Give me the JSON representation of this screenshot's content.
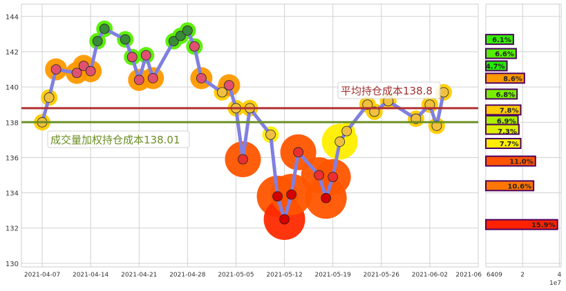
{
  "chart_data": [
    {
      "type": "line",
      "xlim": [
        "2021-04-04",
        "2021-06-09"
      ],
      "ylim": [
        129.8,
        144.7
      ],
      "yticks": [
        130,
        132,
        134,
        136,
        138,
        140,
        142,
        144
      ],
      "xticks": [
        "2021-04-07",
        "2021-04-14",
        "2021-04-21",
        "2021-04-28",
        "2021-05-05",
        "2021-05-12",
        "2021-05-19",
        "2021-05-26",
        "2021-06-02",
        "2021-06-09"
      ],
      "xtick_labels": [
        "2021-04-07",
        "2021-04-14",
        "2021-04-21",
        "2021-04-28",
        "2021-05-05",
        "2021-05-12",
        "2021-05-19",
        "2021-05-26",
        "2021-06-02",
        "2021-06"
      ],
      "grid": true,
      "line_color": "#8080e0",
      "series": [
        {
          "x": [
            "2021-04-07",
            "2021-04-08",
            "2021-04-09",
            "2021-04-12",
            "2021-04-13",
            "2021-04-14",
            "2021-04-15",
            "2021-04-16",
            "2021-04-19",
            "2021-04-20",
            "2021-04-21",
            "2021-04-22",
            "2021-04-23",
            "2021-04-26",
            "2021-04-27",
            "2021-04-28",
            "2021-04-29",
            "2021-04-30",
            "2021-05-03",
            "2021-05-04",
            "2021-05-05",
            "2021-05-06",
            "2021-05-07",
            "2021-05-10",
            "2021-05-11",
            "2021-05-12",
            "2021-05-13",
            "2021-05-14",
            "2021-05-17",
            "2021-05-18",
            "2021-05-19",
            "2021-05-20",
            "2021-05-21",
            "2021-05-24",
            "2021-05-25",
            "2021-05-27",
            "2021-05-31",
            "2021-06-02",
            "2021-06-03",
            "2021-06-04"
          ],
          "y": [
            138.0,
            139.4,
            141.0,
            140.8,
            141.2,
            140.9,
            142.6,
            143.3,
            142.7,
            141.7,
            140.4,
            141.8,
            140.5,
            142.6,
            142.9,
            143.2,
            142.3,
            140.5,
            139.7,
            140.1,
            138.8,
            135.9,
            138.8,
            137.3,
            133.8,
            132.5,
            133.9,
            136.3,
            135.0,
            133.7,
            134.9,
            136.9,
            137.5,
            139.0,
            138.6,
            139.2,
            138.2,
            139.0,
            137.8,
            139.7
          ]
        }
      ],
      "hlines": [
        {
          "label": "平均持仓成本138.8",
          "value": 138.8,
          "color": "#b03030",
          "text_color": "#a03030"
        },
        {
          "label": "成交量加权持仓成本138.01",
          "value": 138.01,
          "color": "#6b8e23",
          "text_color": "#6b8e23"
        }
      ]
    },
    {
      "type": "bar",
      "orientation": "horizontal",
      "xlim": [
        0,
        4.1
      ],
      "xtick_labels": [
        "6409",
        "2",
        "4"
      ],
      "xticks": [
        0,
        2,
        4
      ],
      "offset_label": "1e7",
      "bar_border": "#4b0060",
      "bars": [
        {
          "price": 142.7,
          "value": 1.5,
          "label": "6.1%",
          "color": "#33ee00"
        },
        {
          "price": 141.9,
          "value": 1.65,
          "label": "6.6%",
          "color": "#55ee00"
        },
        {
          "price": 141.2,
          "value": 1.15,
          "label": "4.7%",
          "color": "#22ee00"
        },
        {
          "price": 140.5,
          "value": 2.1,
          "label": "8.6%",
          "color": "#ff9900"
        },
        {
          "price": 139.6,
          "value": 1.7,
          "label": "6.8%",
          "color": "#77ee00"
        },
        {
          "price": 138.7,
          "value": 1.9,
          "label": "7.8%",
          "color": "#ffcc00"
        },
        {
          "price": 138.1,
          "value": 1.75,
          "label": "6.9%",
          "color": "#aaee00"
        },
        {
          "price": 137.6,
          "value": 1.8,
          "label": "7.3%",
          "color": "#ddee00"
        },
        {
          "price": 136.8,
          "value": 1.9,
          "label": "7.7%",
          "color": "#ffee00"
        },
        {
          "price": 135.8,
          "value": 2.7,
          "label": "11.0%",
          "color": "#ff5500"
        },
        {
          "price": 134.4,
          "value": 2.6,
          "label": "10.6%",
          "color": "#ff7700"
        },
        {
          "price": 132.2,
          "value": 3.9,
          "label": "15.9%",
          "color": "#ff2200"
        }
      ]
    }
  ]
}
